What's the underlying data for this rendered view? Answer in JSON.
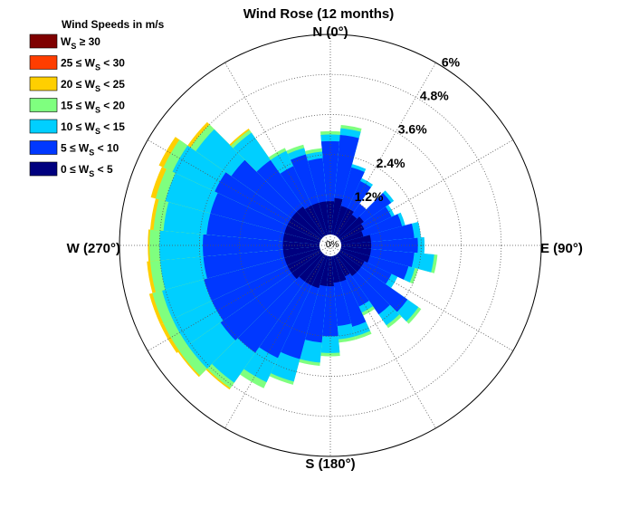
{
  "chart_data": {
    "type": "wind-rose",
    "title": "Wind Rose (12 months)",
    "directions": {
      "north": "N (0°)",
      "east": "E (90°)",
      "south": "S (180°)",
      "west": "W (270°)"
    },
    "radial_unit": "%",
    "radial_max": 6,
    "rings": [
      {
        "value": 1.2,
        "label": "1.2%"
      },
      {
        "value": 2.4,
        "label": "2.4%"
      },
      {
        "value": 3.6,
        "label": "3.6%"
      },
      {
        "value": 4.8,
        "label": "4.8%"
      },
      {
        "value": 6.0,
        "label": "6%"
      }
    ],
    "center_label": "0%",
    "calm_fraction_radius": 0.3,
    "sector_width_deg": 10,
    "legend": {
      "title": "Wind Speeds in m/s",
      "bins": [
        {
          "key": "ge30",
          "label_parts": [
            "W",
            "S",
            " ≥ 30"
          ],
          "color": "#7f0000"
        },
        {
          "key": "25-30",
          "label_parts": [
            "25 ≤ W",
            "S",
            " < 30"
          ],
          "color": "#ff3d00"
        },
        {
          "key": "20-25",
          "label_parts": [
            "20 ≤ W",
            "S",
            " < 25"
          ],
          "color": "#ffcf00"
        },
        {
          "key": "15-20",
          "label_parts": [
            "15 ≤ W",
            "S",
            " < 20"
          ],
          "color": "#7fff7f"
        },
        {
          "key": "10-15",
          "label_parts": [
            "10 ≤ W",
            "S",
            " < 15"
          ],
          "color": "#00cfff"
        },
        {
          "key": "5-10",
          "label_parts": [
            "5 ≤ W",
            "S",
            " < 10"
          ],
          "color": "#0038ff"
        },
        {
          "key": "0-5",
          "label_parts": [
            "0 ≤ W",
            "S",
            " < 5"
          ],
          "color": "#00007f"
        }
      ]
    },
    "sectors": [
      {
        "dir": 0,
        "c": [
          1.0,
          1.8,
          0.2,
          0.1,
          0,
          0,
          0
        ]
      },
      {
        "dir": 10,
        "c": [
          1.1,
          1.9,
          0.2,
          0.1,
          0,
          0,
          0
        ]
      },
      {
        "dir": 20,
        "c": [
          0.9,
          1.2,
          0.1,
          0,
          0,
          0,
          0
        ]
      },
      {
        "dir": 30,
        "c": [
          0.9,
          0.9,
          0.1,
          0,
          0,
          0,
          0
        ]
      },
      {
        "dir": 40,
        "c": [
          0.8,
          0.4,
          0,
          0,
          0,
          0,
          0
        ]
      },
      {
        "dir": 50,
        "c": [
          0.9,
          1.0,
          0.1,
          0,
          0,
          0,
          0
        ]
      },
      {
        "dir": 60,
        "c": [
          0.8,
          0.9,
          0.1,
          0,
          0,
          0,
          0
        ]
      },
      {
        "dir": 70,
        "c": [
          0.7,
          1.2,
          0.1,
          0,
          0,
          0,
          0
        ]
      },
      {
        "dir": 80,
        "c": [
          0.9,
          1.3,
          0.2,
          0,
          0,
          0,
          0
        ]
      },
      {
        "dir": 90,
        "c": [
          0.9,
          1.4,
          0.2,
          0,
          0,
          0,
          0
        ]
      },
      {
        "dir": 100,
        "c": [
          0.9,
          1.3,
          0.6,
          0.1,
          0,
          0,
          0
        ]
      },
      {
        "dir": 110,
        "c": [
          0.9,
          1.2,
          0.2,
          0.1,
          0,
          0,
          0
        ]
      },
      {
        "dir": 120,
        "c": [
          0.8,
          0.9,
          0.2,
          0,
          0,
          0,
          0
        ]
      },
      {
        "dir": 130,
        "c": [
          0.8,
          1.7,
          0.4,
          0.1,
          0,
          0,
          0
        ]
      },
      {
        "dir": 140,
        "c": [
          0.8,
          1.4,
          0.4,
          0.1,
          0,
          0,
          0
        ]
      },
      {
        "dir": 150,
        "c": [
          0.7,
          1.0,
          0.2,
          0.1,
          0,
          0,
          0
        ]
      },
      {
        "dir": 160,
        "c": [
          0.8,
          1.4,
          0.3,
          0.1,
          0,
          0,
          0
        ]
      },
      {
        "dir": 170,
        "c": [
          0.8,
          1.3,
          0.4,
          0.1,
          0,
          0,
          0
        ]
      },
      {
        "dir": 180,
        "c": [
          0.9,
          1.5,
          0.5,
          0.1,
          0,
          0,
          0
        ]
      },
      {
        "dir": 190,
        "c": [
          0.9,
          1.7,
          0.6,
          0.1,
          0,
          0,
          0
        ]
      },
      {
        "dir": 200,
        "c": [
          1.0,
          2.2,
          0.7,
          0.1,
          0,
          0,
          0
        ]
      },
      {
        "dir": 210,
        "c": [
          1.0,
          2.4,
          0.8,
          0.2,
          0,
          0,
          0
        ]
      },
      {
        "dir": 220,
        "c": [
          1.0,
          2.6,
          1.1,
          0.2,
          0.05,
          0,
          0
        ]
      },
      {
        "dir": 230,
        "c": [
          1.1,
          2.6,
          1.2,
          0.3,
          0.05,
          0,
          0
        ]
      },
      {
        "dir": 240,
        "c": [
          1.1,
          2.5,
          1.3,
          0.3,
          0.1,
          0,
          0
        ]
      },
      {
        "dir": 250,
        "c": [
          1.1,
          2.5,
          1.3,
          0.3,
          0.1,
          0,
          0
        ]
      },
      {
        "dir": 260,
        "c": [
          1.1,
          2.4,
          1.3,
          0.3,
          0.1,
          0,
          0
        ]
      },
      {
        "dir": 270,
        "c": [
          1.1,
          2.4,
          1.3,
          0.3,
          0.05,
          0,
          0
        ]
      },
      {
        "dir": 280,
        "c": [
          1.1,
          2.3,
          1.3,
          0.3,
          0.1,
          0,
          0
        ]
      },
      {
        "dir": 290,
        "c": [
          1.1,
          2.3,
          1.4,
          0.3,
          0.15,
          0,
          0
        ]
      },
      {
        "dir": 300,
        "c": [
          1.1,
          2.4,
          1.4,
          0.3,
          0.15,
          0,
          0
        ]
      },
      {
        "dir": 310,
        "c": [
          1.1,
          2.2,
          1.3,
          0.2,
          0.1,
          0,
          0
        ]
      },
      {
        "dir": 320,
        "c": [
          1.1,
          1.7,
          1.0,
          0.1,
          0.05,
          0,
          0
        ]
      },
      {
        "dir": 330,
        "c": [
          1.0,
          1.3,
          0.5,
          0.1,
          0,
          0,
          0
        ]
      },
      {
        "dir": 340,
        "c": [
          1.0,
          1.5,
          0.2,
          0.1,
          0,
          0,
          0
        ]
      },
      {
        "dir": 350,
        "c": [
          1.0,
          1.3,
          0.2,
          0.1,
          0,
          0,
          0
        ]
      }
    ]
  }
}
